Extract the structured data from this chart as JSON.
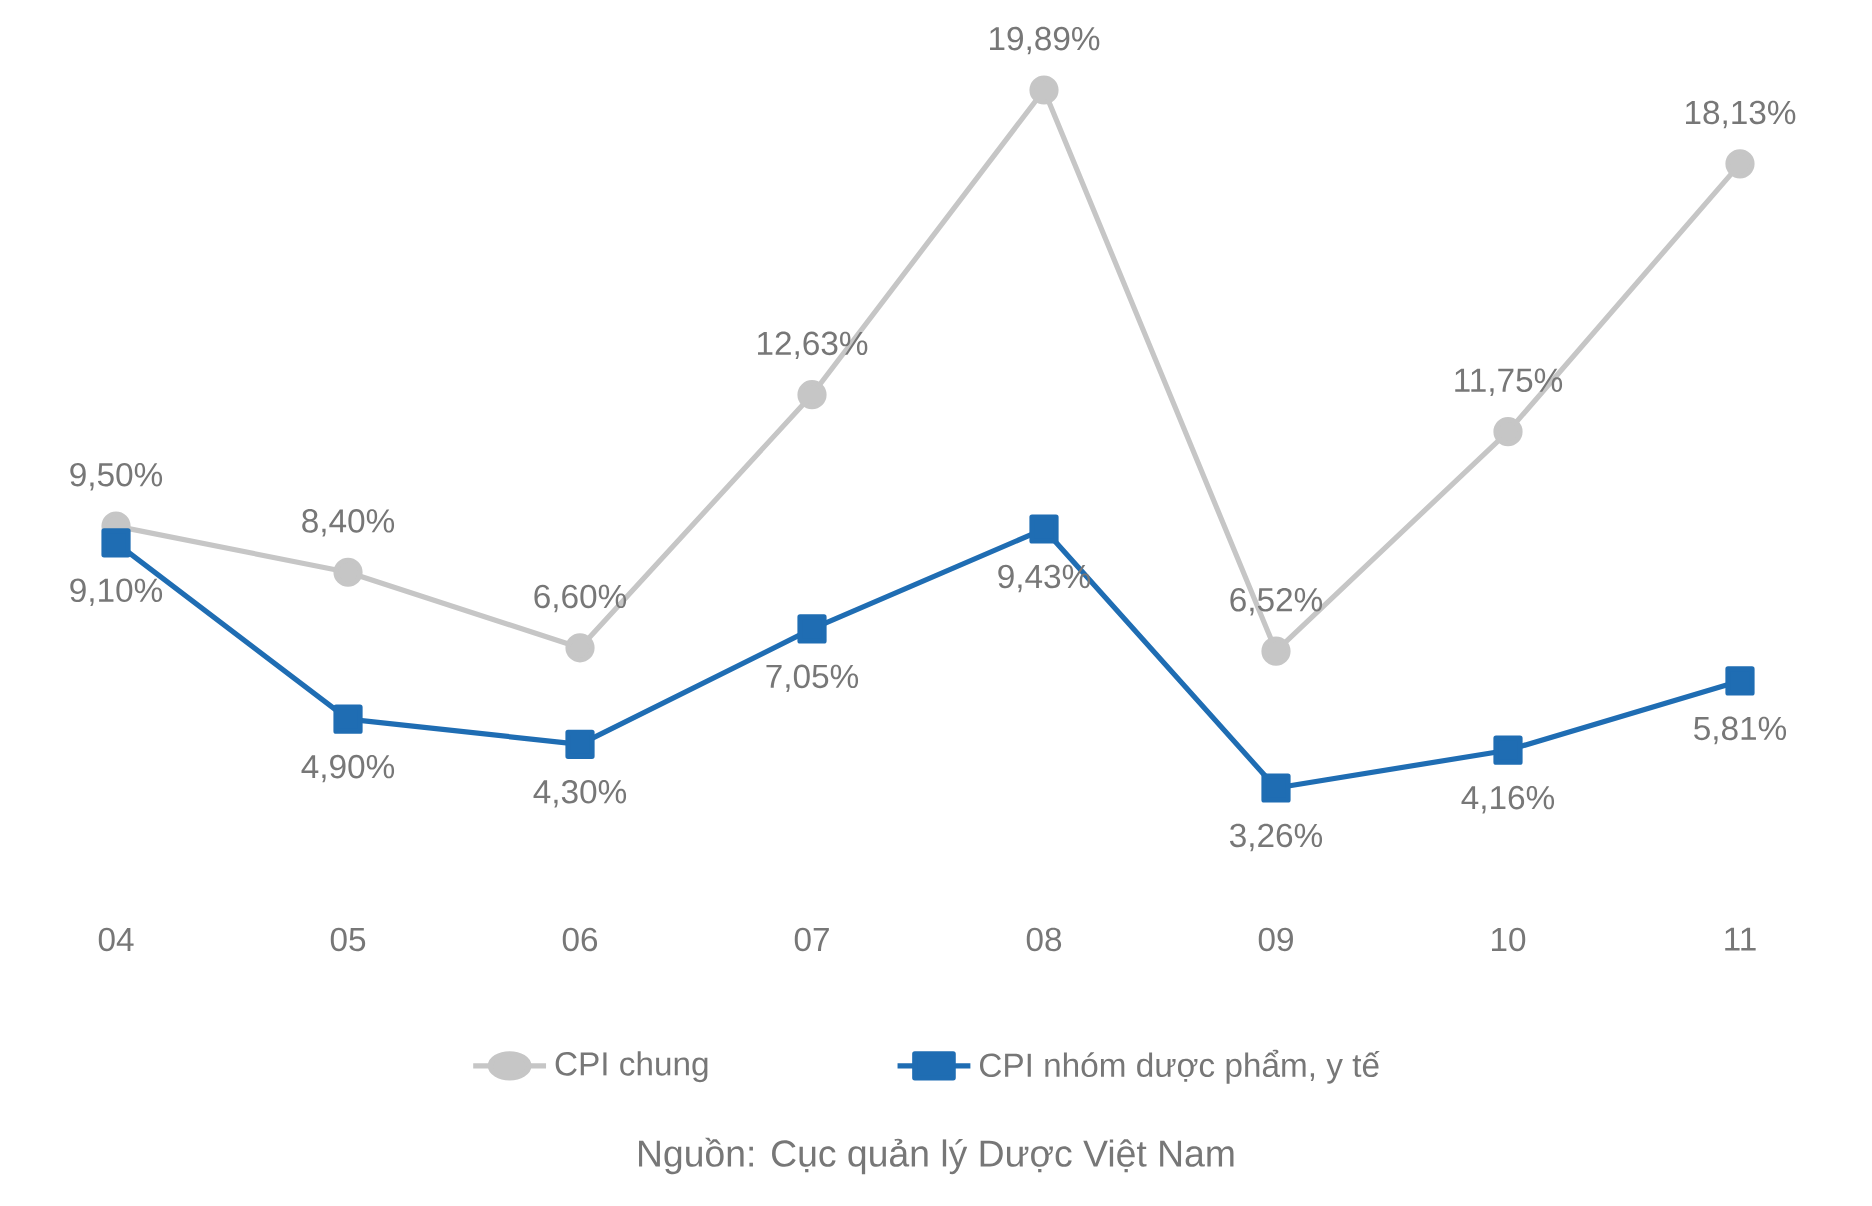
{
  "chart_data": {
    "type": "line",
    "categories": [
      "04",
      "05",
      "06",
      "07",
      "08",
      "09",
      "10",
      "11"
    ],
    "series": [
      {
        "name": "CPI chung",
        "color": "#c6c6c6",
        "marker": "circle",
        "values": [
          9.5,
          8.4,
          6.6,
          12.63,
          19.89,
          6.52,
          11.75,
          18.13
        ],
        "value_labels": [
          "9,50%",
          "8,40%",
          "6,60%",
          "12,63%",
          "19,89%",
          "6,52%",
          "11,75%",
          "18,13%"
        ]
      },
      {
        "name": "CPI nhóm dược phẩm, y tế",
        "color": "#1f6db3",
        "marker": "square",
        "values": [
          9.1,
          4.9,
          4.3,
          7.05,
          9.43,
          3.26,
          4.16,
          5.81
        ],
        "value_labels": [
          "9,10%",
          "4,90%",
          "4,30%",
          "7,05%",
          "9,43%",
          "3,26%",
          "4,16%",
          "5,81%"
        ]
      }
    ],
    "grid": false,
    "legend": "bottom",
    "annotations": [
      "Nguồn: Cục quản lý Dược Việt Nam"
    ]
  }
}
